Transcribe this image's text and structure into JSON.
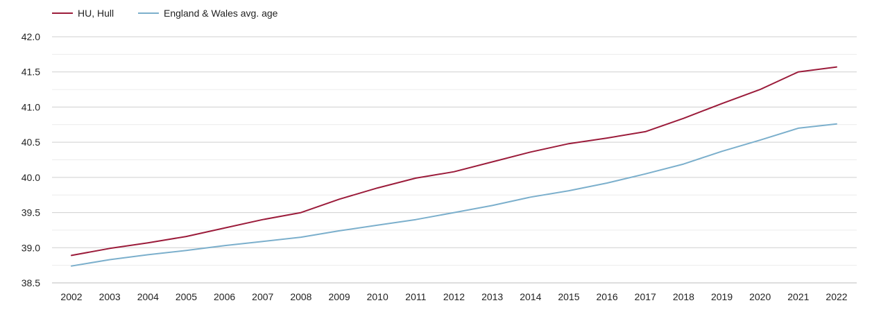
{
  "chart_data": {
    "type": "line",
    "x": [
      "2002",
      "2003",
      "2004",
      "2005",
      "2006",
      "2007",
      "2008",
      "2009",
      "2010",
      "2011",
      "2012",
      "2013",
      "2014",
      "2015",
      "2016",
      "2017",
      "2018",
      "2019",
      "2020",
      "2021",
      "2022"
    ],
    "series": [
      {
        "name": "HU, Hull",
        "color": "#9b1b3a",
        "values": [
          38.89,
          38.99,
          39.07,
          39.16,
          39.28,
          39.4,
          39.5,
          39.69,
          39.85,
          39.99,
          40.08,
          40.22,
          40.36,
          40.48,
          40.56,
          40.65,
          40.84,
          41.05,
          41.25,
          41.5,
          41.57
        ]
      },
      {
        "name": "England & Wales avg. age",
        "color": "#7bafcc",
        "values": [
          38.74,
          38.83,
          38.9,
          38.96,
          39.03,
          39.09,
          39.15,
          39.24,
          39.32,
          39.4,
          39.5,
          39.6,
          39.72,
          39.81,
          39.92,
          40.05,
          40.19,
          40.37,
          40.53,
          40.7,
          40.76
        ]
      }
    ],
    "y_ticks": [
      "38.5",
      "39.0",
      "39.5",
      "40.0",
      "40.5",
      "41.0",
      "41.5",
      "42.0"
    ],
    "ylim": [
      38.5,
      42.0
    ],
    "grid": true,
    "minor_grid": true,
    "legend_position": "top-left",
    "title": "",
    "xlabel": "",
    "ylabel": ""
  }
}
